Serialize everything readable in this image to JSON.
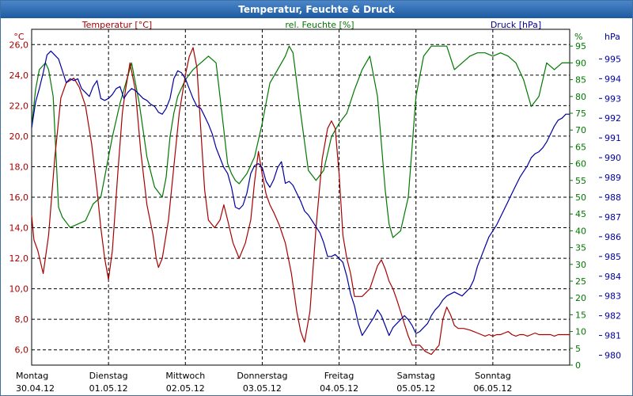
{
  "window": {
    "title": "Temperatur, Feuchte & Druck"
  },
  "chart_data": {
    "type": "line",
    "title": "Temperatur, Feuchte & Druck",
    "colors": {
      "temperature": "#a80000",
      "humidity": "#007800",
      "pressure": "#0000a0",
      "grid": "#000000"
    },
    "axes": {
      "left": {
        "label": "Temperatur [°C]",
        "unit": "°C",
        "ylim": [
          5,
          27
        ],
        "ticks": [
          "26,0",
          "24,0",
          "22,0",
          "20,0",
          "18,0",
          "16,0",
          "14,0",
          "12,0",
          "10,0",
          "8,0",
          "6,0"
        ],
        "tick_values": [
          26,
          24,
          22,
          20,
          18,
          16,
          14,
          12,
          10,
          8,
          6
        ]
      },
      "right1": {
        "label": "rel. Feuchte [%]",
        "unit": "%",
        "ylim": [
          0,
          100
        ],
        "ticks": [
          "95",
          "90",
          "85",
          "80",
          "75",
          "70",
          "65",
          "60",
          "55",
          "50",
          "45",
          "40",
          "35",
          "30",
          "25",
          "20",
          "15",
          "10",
          "5",
          "0"
        ],
        "tick_values": [
          95,
          90,
          85,
          80,
          75,
          70,
          65,
          60,
          55,
          50,
          45,
          40,
          35,
          30,
          25,
          20,
          15,
          10,
          5,
          0
        ]
      },
      "right2": {
        "label": "Druck [hPa]",
        "unit": "hPa",
        "ylim": [
          979.5,
          996.5
        ],
        "ticks": [
          "995",
          "994",
          "993",
          "992",
          "991",
          "990",
          "989",
          "988",
          "987",
          "986",
          "985",
          "984",
          "983",
          "982",
          "981",
          "980"
        ],
        "tick_values": [
          995,
          994,
          993,
          992,
          991,
          990,
          989,
          988,
          987,
          986,
          985,
          984,
          983,
          982,
          981,
          980
        ]
      }
    },
    "x": {
      "range_days": [
        0,
        7
      ],
      "day_names": [
        "Montag",
        "Dienstag",
        "Mittwoch",
        "Donnerstag",
        "Freitag",
        "Samstag",
        "Sonntag"
      ],
      "dates": [
        "30.04.12",
        "01.05.12",
        "02.05.12",
        "03.05.12",
        "04.05.12",
        "05.05.12",
        "06.05.12"
      ]
    },
    "series": [
      {
        "name": "Temperatur",
        "unit": "°C",
        "x": [
          0,
          0.03,
          0.08,
          0.15,
          0.22,
          0.3,
          0.38,
          0.45,
          0.55,
          0.62,
          0.7,
          0.78,
          0.85,
          0.9,
          0.95,
          1.0,
          1.05,
          1.12,
          1.18,
          1.22,
          1.28,
          1.35,
          1.42,
          1.5,
          1.58,
          1.62,
          1.65,
          1.7,
          1.78,
          1.85,
          1.92,
          2.0,
          2.05,
          2.1,
          2.15,
          2.2,
          2.25,
          2.3,
          2.38,
          2.45,
          2.5,
          2.55,
          2.62,
          2.7,
          2.78,
          2.85,
          2.9,
          2.95,
          3.0,
          3.05,
          3.1,
          3.15,
          3.22,
          3.3,
          3.38,
          3.45,
          3.5,
          3.55,
          3.62,
          3.7,
          3.78,
          3.85,
          3.9,
          3.95,
          4.0,
          4.05,
          4.1,
          4.15,
          4.2,
          4.3,
          4.4,
          4.5,
          4.55,
          4.6,
          4.65,
          4.7,
          4.75,
          4.8,
          4.85,
          4.9,
          4.95,
          5.0,
          5.05,
          5.12,
          5.2,
          5.3,
          5.35,
          5.4,
          5.45,
          5.5,
          5.55,
          5.62,
          5.7,
          5.75,
          5.8,
          5.85,
          5.9,
          5.95,
          6.0,
          6.05,
          6.1,
          6.15,
          6.2,
          6.25,
          6.3,
          6.35,
          6.4,
          6.45,
          6.5,
          6.55,
          6.6,
          6.65,
          6.7,
          6.75,
          6.8,
          6.85,
          6.9,
          6.95,
          7.0
        ],
        "values": [
          14.8,
          13.2,
          12.5,
          11.0,
          13.5,
          18.5,
          22.5,
          23.5,
          23.8,
          23.2,
          22.0,
          19.5,
          16.5,
          14.0,
          12.0,
          10.6,
          12.5,
          17.5,
          21.5,
          23.0,
          24.8,
          23.0,
          19.0,
          15.5,
          13.5,
          12.0,
          11.4,
          12.0,
          14.5,
          18.0,
          21.5,
          24.0,
          25.2,
          25.8,
          24.5,
          20.5,
          16.5,
          14.5,
          14.0,
          14.5,
          15.5,
          14.5,
          13.0,
          12.0,
          13.0,
          14.5,
          17.0,
          19.0,
          17.5,
          16.2,
          15.5,
          15.0,
          14.2,
          13.0,
          11.0,
          8.5,
          7.2,
          6.5,
          8.5,
          14.0,
          18.5,
          20.5,
          21.0,
          20.5,
          17.5,
          13.5,
          12.0,
          11.0,
          9.5,
          9.5,
          10.0,
          11.5,
          11.9,
          11.3,
          10.5,
          10.0,
          9.3,
          8.5,
          7.7,
          6.9,
          6.3,
          6.3,
          6.3,
          5.9,
          5.7,
          6.3,
          8.0,
          8.8,
          8.3,
          7.6,
          7.4,
          7.4,
          7.3,
          7.2,
          7.1,
          7.0,
          6.9,
          7.0,
          6.9,
          7.0,
          7.0,
          7.1,
          7.2,
          7.0,
          6.9,
          7.0,
          7.0,
          6.9,
          7.0,
          7.1,
          7.0,
          7.0,
          7.0,
          7.0,
          6.9,
          7.0,
          7.0,
          7.0,
          7.0
        ]
      },
      {
        "name": "rel. Feuchte",
        "unit": "%",
        "x": [
          0,
          0.05,
          0.1,
          0.18,
          0.22,
          0.28,
          0.35,
          0.4,
          0.5,
          0.6,
          0.7,
          0.8,
          0.9,
          0.95,
          1.0,
          1.05,
          1.1,
          1.15,
          1.2,
          1.25,
          1.3,
          1.4,
          1.5,
          1.6,
          1.7,
          1.75,
          1.8,
          1.85,
          1.9,
          2.0,
          2.1,
          2.2,
          2.3,
          2.4,
          2.5,
          2.55,
          2.6,
          2.65,
          2.7,
          2.8,
          2.9,
          3.0,
          3.1,
          3.2,
          3.3,
          3.35,
          3.4,
          3.5,
          3.6,
          3.7,
          3.8,
          3.9,
          4.0,
          4.1,
          4.2,
          4.3,
          4.4,
          4.5,
          4.6,
          4.65,
          4.7,
          4.8,
          4.9,
          5.0,
          5.1,
          5.2,
          5.3,
          5.4,
          5.5,
          5.6,
          5.7,
          5.8,
          5.9,
          6.0,
          6.1,
          6.2,
          6.3,
          6.4,
          6.5,
          6.6,
          6.7,
          6.8,
          6.9,
          7.0
        ],
        "values": [
          71.0,
          82.0,
          88.0,
          90.0,
          88.0,
          80.0,
          47.0,
          44.0,
          41.0,
          42.0,
          43.0,
          48.0,
          50.0,
          56.0,
          62.0,
          68.0,
          73.0,
          78.0,
          82.0,
          86.0,
          90.0,
          78.0,
          62.0,
          53.0,
          50.0,
          56.0,
          68.0,
          75.0,
          80.0,
          85.0,
          88.0,
          90.0,
          92.0,
          90.0,
          70.0,
          60.0,
          57.0,
          55.0,
          54.0,
          57.0,
          62.0,
          72.0,
          84.0,
          88.0,
          92.0,
          95.0,
          93.0,
          75.0,
          58.0,
          55.0,
          58.0,
          68.0,
          72.0,
          75.0,
          82.0,
          88.0,
          92.0,
          80.0,
          52.0,
          42.0,
          38.0,
          40.0,
          50.0,
          80.0,
          92.0,
          95.0,
          95.0,
          95.0,
          88.0,
          90.0,
          92.0,
          93.0,
          93.0,
          92.0,
          93.0,
          92.0,
          90.0,
          85.0,
          77.0,
          80.0,
          90.0,
          88.0,
          90.0,
          90.0
        ]
      },
      {
        "name": "Druck",
        "unit": "hPa",
        "x": [
          0,
          0.05,
          0.1,
          0.15,
          0.2,
          0.25,
          0.3,
          0.35,
          0.4,
          0.45,
          0.5,
          0.55,
          0.6,
          0.65,
          0.7,
          0.75,
          0.8,
          0.85,
          0.9,
          0.95,
          1.0,
          1.05,
          1.1,
          1.15,
          1.2,
          1.25,
          1.3,
          1.35,
          1.4,
          1.45,
          1.5,
          1.55,
          1.6,
          1.65,
          1.7,
          1.75,
          1.8,
          1.85,
          1.9,
          1.95,
          2.0,
          2.05,
          2.1,
          2.15,
          2.2,
          2.25,
          2.3,
          2.35,
          2.4,
          2.45,
          2.5,
          2.55,
          2.6,
          2.65,
          2.7,
          2.75,
          2.8,
          2.85,
          2.9,
          2.95,
          3.0,
          3.05,
          3.1,
          3.15,
          3.2,
          3.25,
          3.3,
          3.35,
          3.4,
          3.45,
          3.5,
          3.55,
          3.6,
          3.65,
          3.7,
          3.75,
          3.8,
          3.85,
          3.9,
          3.95,
          4.0,
          4.05,
          4.1,
          4.15,
          4.2,
          4.25,
          4.3,
          4.35,
          4.4,
          4.45,
          4.5,
          4.55,
          4.6,
          4.65,
          4.7,
          4.75,
          4.8,
          4.85,
          4.9,
          4.95,
          5.0,
          5.05,
          5.1,
          5.15,
          5.2,
          5.25,
          5.3,
          5.35,
          5.4,
          5.45,
          5.5,
          5.55,
          5.6,
          5.65,
          5.7,
          5.75,
          5.8,
          5.85,
          5.9,
          5.95,
          6.0,
          6.05,
          6.1,
          6.15,
          6.2,
          6.25,
          6.3,
          6.35,
          6.4,
          6.45,
          6.5,
          6.55,
          6.6,
          6.65,
          6.7,
          6.75,
          6.8,
          6.85,
          6.9,
          6.95,
          7.0
        ],
        "values": [
          991.5,
          992.8,
          993.5,
          994.3,
          995.2,
          995.4,
          995.2,
          995.0,
          994.4,
          993.8,
          994.0,
          993.9,
          994.0,
          993.5,
          993.3,
          993.1,
          993.6,
          993.9,
          993.0,
          992.9,
          993.0,
          993.2,
          993.5,
          993.6,
          993.0,
          993.3,
          993.5,
          993.4,
          993.2,
          993.0,
          992.9,
          992.7,
          992.6,
          992.3,
          992.2,
          992.5,
          993.0,
          994.0,
          994.4,
          994.3,
          994.0,
          993.5,
          993.0,
          992.6,
          992.5,
          992.1,
          991.7,
          991.2,
          990.5,
          990.0,
          989.5,
          989.2,
          988.5,
          987.5,
          987.4,
          987.6,
          988.2,
          989.2,
          989.6,
          989.7,
          989.5,
          988.8,
          988.5,
          988.9,
          989.5,
          989.8,
          988.7,
          988.8,
          988.6,
          988.2,
          987.8,
          987.3,
          987.1,
          986.8,
          986.5,
          986.2,
          985.7,
          985.0,
          985.0,
          985.1,
          984.9,
          984.7,
          984.0,
          983.1,
          982.5,
          981.6,
          981.0,
          981.3,
          981.6,
          981.9,
          982.3,
          982.0,
          981.5,
          981.0,
          981.4,
          981.6,
          981.8,
          982.0,
          981.8,
          981.5,
          981.1,
          981.2,
          981.4,
          981.6,
          982.0,
          982.3,
          982.5,
          982.8,
          983.0,
          983.1,
          983.2,
          983.1,
          983.0,
          983.2,
          983.4,
          983.8,
          984.5,
          985.0,
          985.5,
          986.0,
          986.3,
          986.6,
          987.0,
          987.4,
          987.8,
          988.2,
          988.6,
          989.0,
          989.3,
          989.6,
          990.0,
          990.2,
          990.3,
          990.5,
          990.8,
          991.2,
          991.6,
          991.9,
          992.0,
          992.2,
          992.2
        ]
      }
    ]
  }
}
